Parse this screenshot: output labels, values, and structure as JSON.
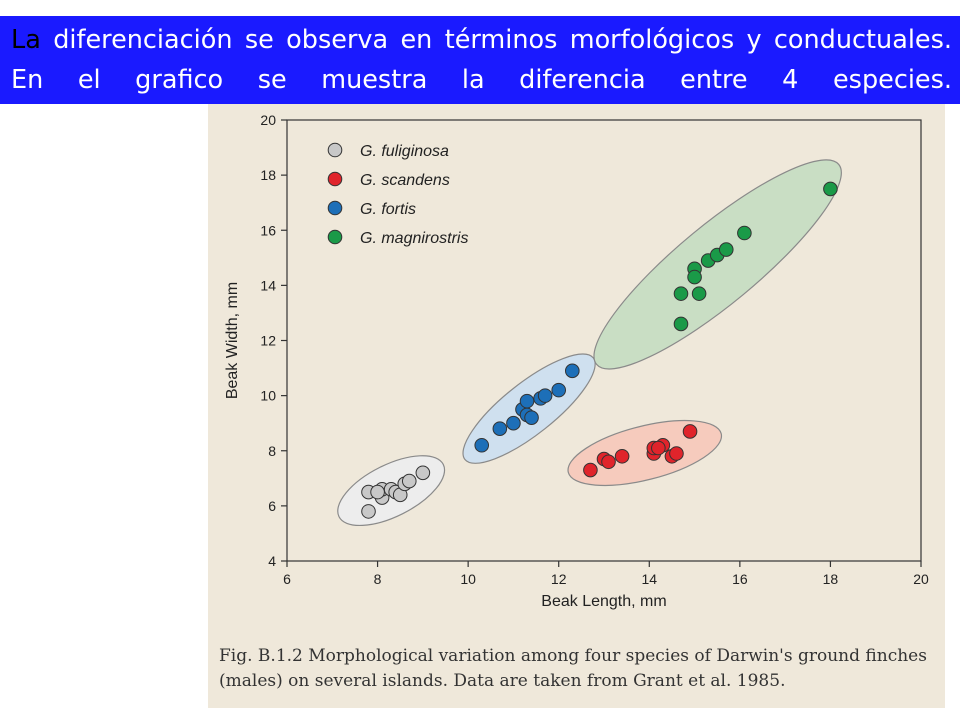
{
  "slide": {
    "text_first": "La",
    "text_rest": "diferenciación se observa en términos morfológicos y conductuales. En el grafico se muestra la diferencia entre 4 especies.",
    "header_bg": "#1a1aff"
  },
  "caption": {
    "text": "Fig. B.1.2 Morphological variation among four species of Darwin's ground finches (males) on several islands. Data are taken from Grant et al. 1985."
  },
  "chart_data": {
    "type": "scatter",
    "xlabel": "Beak Length, mm",
    "ylabel": "Beak Width, mm",
    "xlim": [
      6,
      20
    ],
    "ylim": [
      4,
      20
    ],
    "xticks": [
      6,
      8,
      10,
      12,
      14,
      16,
      18,
      20
    ],
    "yticks": [
      4,
      6,
      8,
      10,
      12,
      14,
      16,
      18,
      20
    ],
    "grid": false,
    "legend_position": "top-left",
    "series": [
      {
        "name": "G. fuliginosa",
        "color": "#c8c8c8",
        "ellipse_color": "#ededed",
        "points": [
          [
            7.8,
            5.8
          ],
          [
            7.8,
            6.5
          ],
          [
            8.1,
            6.3
          ],
          [
            8.1,
            6.6
          ],
          [
            8.0,
            6.5
          ],
          [
            8.3,
            6.6
          ],
          [
            8.4,
            6.5
          ],
          [
            8.5,
            6.4
          ],
          [
            8.6,
            6.8
          ],
          [
            8.7,
            6.9
          ],
          [
            9.0,
            7.2
          ]
        ]
      },
      {
        "name": "G. scandens",
        "color": "#e0242b",
        "ellipse_color": "#f6cbbd",
        "points": [
          [
            12.7,
            7.3
          ],
          [
            13.0,
            7.7
          ],
          [
            13.1,
            7.6
          ],
          [
            13.4,
            7.8
          ],
          [
            14.1,
            7.9
          ],
          [
            14.1,
            8.1
          ],
          [
            14.3,
            8.2
          ],
          [
            14.2,
            8.1
          ],
          [
            14.5,
            7.8
          ],
          [
            14.6,
            7.9
          ],
          [
            14.9,
            8.7
          ]
        ]
      },
      {
        "name": "G. fortis",
        "color": "#1d6fb8",
        "ellipse_color": "#cfe0ef",
        "points": [
          [
            10.3,
            8.2
          ],
          [
            10.7,
            8.8
          ],
          [
            11.0,
            9.0
          ],
          [
            11.2,
            9.5
          ],
          [
            11.3,
            9.3
          ],
          [
            11.3,
            9.8
          ],
          [
            11.4,
            9.2
          ],
          [
            11.6,
            9.9
          ],
          [
            11.7,
            10.0
          ],
          [
            12.0,
            10.2
          ],
          [
            12.3,
            10.9
          ]
        ]
      },
      {
        "name": "G. magnirostris",
        "color": "#1a9a48",
        "ellipse_color": "#c9dec4",
        "points": [
          [
            14.7,
            12.6
          ],
          [
            14.7,
            13.7
          ],
          [
            15.0,
            14.6
          ],
          [
            15.0,
            14.3
          ],
          [
            15.1,
            13.7
          ],
          [
            15.3,
            14.9
          ],
          [
            15.5,
            15.1
          ],
          [
            15.7,
            15.3
          ],
          [
            16.1,
            15.9
          ],
          [
            18.0,
            17.5
          ]
        ]
      }
    ]
  }
}
